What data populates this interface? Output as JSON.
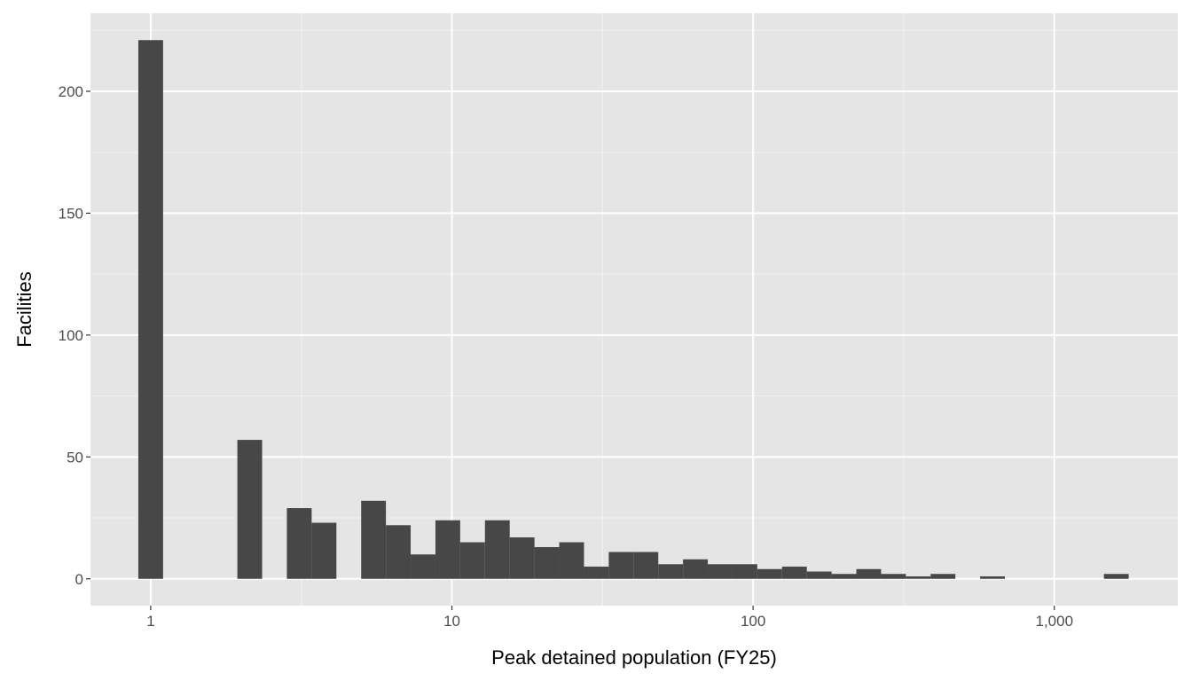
{
  "chart_data": {
    "type": "bar",
    "subtype": "histogram",
    "title": "",
    "xlabel": "Peak detained population (FY25)",
    "ylabel": "Facilities",
    "x_scale": "log10",
    "bin_width_log10": 0.0822,
    "first_bin_center_log10": 0,
    "counts": [
      221,
      0,
      0,
      0,
      57,
      0,
      29,
      23,
      0,
      32,
      22,
      10,
      24,
      15,
      24,
      17,
      13,
      15,
      5,
      11,
      11,
      6,
      8,
      6,
      6,
      4,
      5,
      3,
      2,
      4,
      2,
      1,
      2,
      0,
      1,
      0,
      0,
      0,
      0,
      2
    ],
    "xlim_log10": [
      -0.2,
      3.41
    ],
    "ylim": [
      -11,
      232
    ],
    "x_ticks": [
      {
        "value": 1,
        "label": "1"
      },
      {
        "value": 10,
        "label": "10"
      },
      {
        "value": 100,
        "label": "100"
      },
      {
        "value": 1000,
        "label": "1,000"
      }
    ],
    "y_ticks": [
      {
        "value": 0,
        "label": "0"
      },
      {
        "value": 50,
        "label": "50"
      },
      {
        "value": 100,
        "label": "100"
      },
      {
        "value": 150,
        "label": "150"
      },
      {
        "value": 200,
        "label": "200"
      }
    ],
    "grid": true,
    "bar_color": "#474747",
    "panel_color": "#e5e5e5"
  }
}
